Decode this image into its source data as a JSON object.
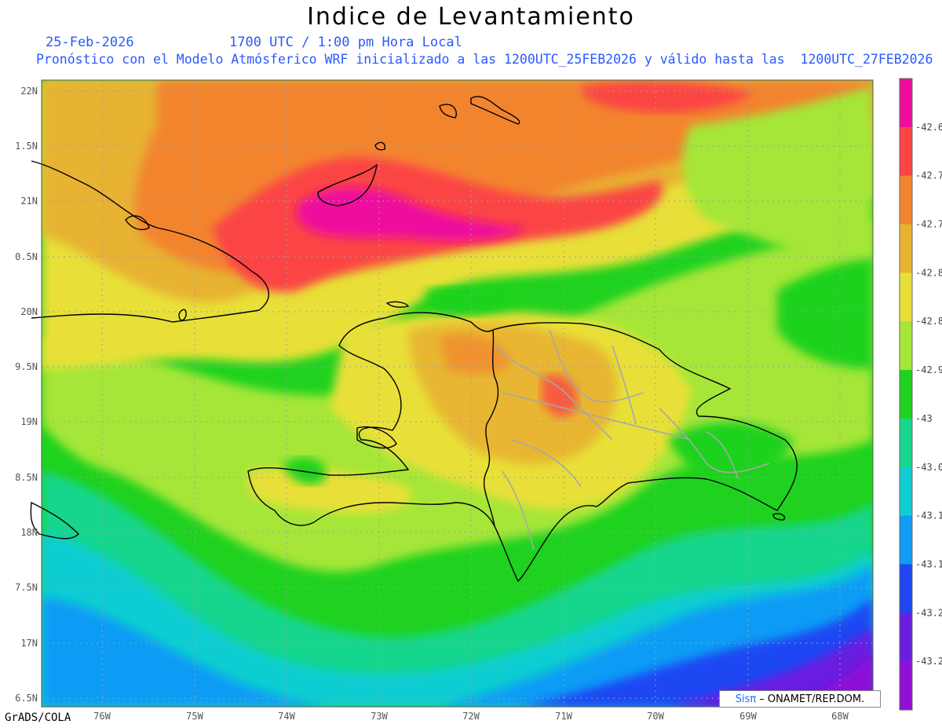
{
  "title": "Indice de Levantamiento",
  "subtitle_date": "25-Feb-2026",
  "subtitle_time": "1700 UTC / 1:00 pm Hora Local",
  "subtitle_desc": "Pronóstico con el Modelo Atmósferico WRF inicializado a las 1200UTC_25FEB2026 y válido hasta las  1200UTC_27FEB2026",
  "credit": "GrADS/COLA",
  "watermark": {
    "logo": "Sisπ",
    "text": "– ONAMET/REP.DOM."
  },
  "lat_labels": [
    "22N",
    "1.5N",
    "21N",
    "0.5N",
    "20N",
    "9.5N",
    "19N",
    "8.5N",
    "18N",
    "7.5N",
    "17N",
    "6.5N"
  ],
  "lon_labels": [
    "76W",
    "75W",
    "74W",
    "73W",
    "72W",
    "71W",
    "70W",
    "69W",
    "68W"
  ],
  "colorbar": {
    "labels": [
      "-42.6",
      "-42.7",
      "-42.7",
      "-42.8",
      "-42.8",
      "-42.9",
      "-43",
      "-43.0",
      "-43.1",
      "-43.1",
      "-43.2",
      "-43.2"
    ],
    "colors": [
      "#ee0d9c",
      "#fb4444",
      "#f3842f",
      "#e8b231",
      "#e8e039",
      "#a5e637",
      "#1fd21f",
      "#19d68e",
      "#11cdd2",
      "#109cf5",
      "#1e46f3",
      "#6a1fe0",
      "#9010d6"
    ]
  }
}
